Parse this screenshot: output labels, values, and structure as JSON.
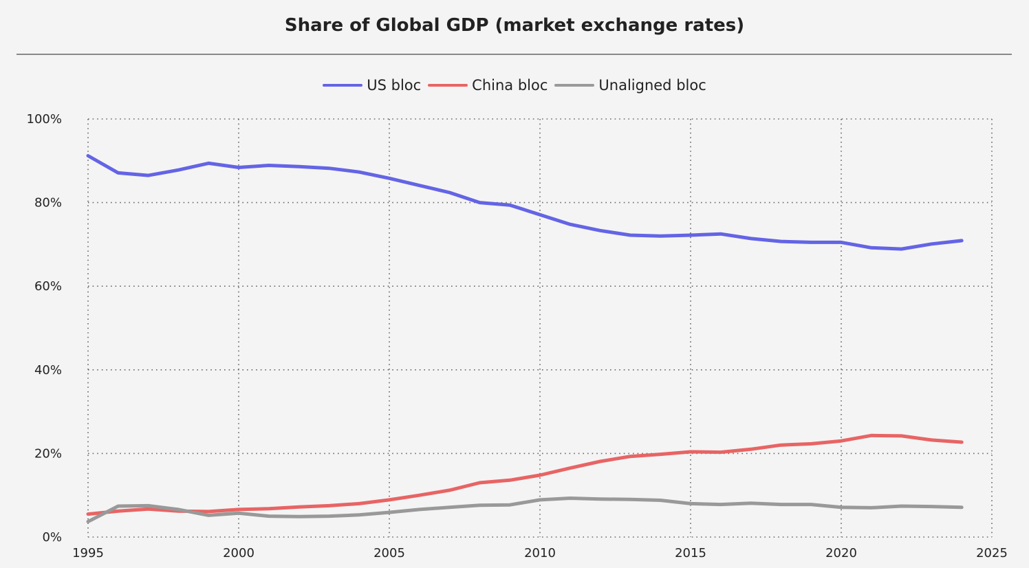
{
  "chart_data": {
    "type": "line",
    "title": "Share of Global GDP (market exchange rates)",
    "xlabel": "",
    "ylabel": "",
    "xlim": [
      1995,
      2025
    ],
    "ylim": [
      0,
      100
    ],
    "grid": true,
    "legend_position": "top-center",
    "x_ticks": [
      "1995",
      "2000",
      "2005",
      "2010",
      "2015",
      "2020",
      "2025"
    ],
    "y_ticks": [
      "0%",
      "20%",
      "40%",
      "60%",
      "80%",
      "100%"
    ],
    "x": [
      1995,
      1996,
      1997,
      1998,
      1999,
      2000,
      2001,
      2002,
      2003,
      2004,
      2005,
      2006,
      2007,
      2008,
      2009,
      2010,
      2011,
      2012,
      2013,
      2014,
      2015,
      2016,
      2017,
      2018,
      2019,
      2020,
      2021,
      2022,
      2023,
      2024
    ],
    "series": [
      {
        "name": "US bloc",
        "color": "#6464e6",
        "values": [
          91.2,
          87.1,
          86.5,
          87.8,
          89.4,
          88.4,
          88.9,
          88.6,
          88.2,
          87.3,
          85.8,
          84.1,
          82.4,
          80.0,
          79.4,
          77.1,
          74.8,
          73.3,
          72.2,
          72.0,
          72.2,
          72.5,
          71.4,
          70.7,
          70.5,
          70.5,
          69.2,
          68.9,
          70.1,
          70.9
        ]
      },
      {
        "name": "China bloc",
        "color": "#e86464",
        "values": [
          5.5,
          6.2,
          6.7,
          6.2,
          6.1,
          6.6,
          6.8,
          7.2,
          7.5,
          8.0,
          8.9,
          10.0,
          11.2,
          13.0,
          13.6,
          14.8,
          16.5,
          18.1,
          19.3,
          19.8,
          20.4,
          20.3,
          21.0,
          22.0,
          22.3,
          23.0,
          24.3,
          24.2,
          23.2,
          22.7
        ]
      },
      {
        "name": "Unaligned bloc",
        "color": "#999999",
        "values": [
          3.7,
          7.4,
          7.5,
          6.6,
          5.2,
          5.7,
          5.0,
          4.9,
          5.0,
          5.3,
          5.9,
          6.6,
          7.1,
          7.6,
          7.7,
          8.9,
          9.3,
          9.1,
          9.0,
          8.8,
          8.0,
          7.8,
          8.1,
          7.8,
          7.8,
          7.1,
          7.0,
          7.4,
          7.3,
          7.1
        ]
      }
    ]
  }
}
